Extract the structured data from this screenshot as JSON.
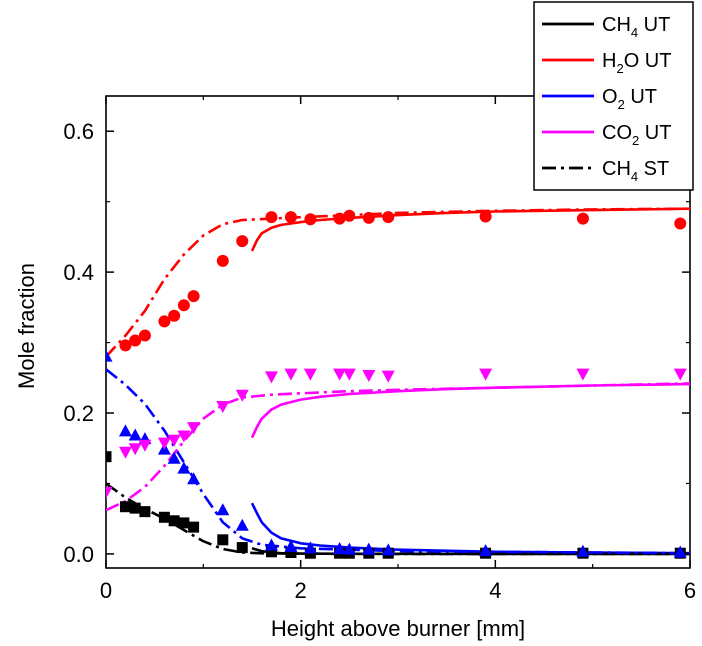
{
  "chart_data": {
    "type": "line",
    "xlabel": "Height above burner [mm]",
    "ylabel": "Mole fraction",
    "xlim": [
      0,
      6
    ],
    "ylim": [
      -0.02,
      0.65
    ],
    "xticks": [
      0,
      2,
      4,
      6
    ],
    "yticks": [
      0.0,
      0.2,
      0.4,
      0.6
    ],
    "xtick_labels": [
      "0",
      "2",
      "4",
      "6"
    ],
    "ytick_labels": [
      "0.0",
      "0.2",
      "0.4",
      "0.6"
    ],
    "grid": false,
    "legend_position": "top-right",
    "legend": [
      {
        "species": "CH",
        "sub": "4",
        "suffix": " UT",
        "color": "#000000",
        "style": "solid"
      },
      {
        "species": "H",
        "sub": "2",
        "suffix": "O UT",
        "color": "#ff0000",
        "style": "solid"
      },
      {
        "species": "O",
        "sub": "2",
        "suffix": " UT",
        "color": "#0000ff",
        "style": "solid"
      },
      {
        "species": "CO",
        "sub": "2",
        "suffix": " UT",
        "color": "#ff00ff",
        "style": "solid"
      },
      {
        "species": "CH",
        "sub": "4",
        "suffix": " ST",
        "color": "#000000",
        "style": "dashdot"
      }
    ],
    "lines": [
      {
        "name": "CH4 UT",
        "color": "#000000",
        "style": "solid",
        "x": [
          1.5,
          1.6,
          1.7,
          1.8,
          2.0,
          2.5,
          3,
          4,
          5,
          6
        ],
        "y": [
          0.008,
          0.004,
          0.002,
          0.001,
          0.0005,
          0.0002,
          0.0001,
          0.0,
          0.0,
          0.0
        ]
      },
      {
        "name": "H2O UT",
        "color": "#ff0000",
        "style": "solid",
        "x": [
          1.5,
          1.55,
          1.6,
          1.7,
          1.8,
          2.0,
          2.2,
          2.5,
          3.0,
          3.5,
          4.0,
          5.0,
          6.0
        ],
        "y": [
          0.43,
          0.445,
          0.455,
          0.463,
          0.467,
          0.471,
          0.474,
          0.477,
          0.481,
          0.484,
          0.486,
          0.488,
          0.49
        ]
      },
      {
        "name": "O2 UT",
        "color": "#0000ff",
        "style": "solid",
        "x": [
          1.5,
          1.55,
          1.6,
          1.7,
          1.8,
          2.0,
          2.2,
          2.5,
          3.0,
          4.0,
          5.0,
          6.0
        ],
        "y": [
          0.072,
          0.058,
          0.045,
          0.03,
          0.022,
          0.015,
          0.012,
          0.009,
          0.006,
          0.003,
          0.002,
          0.001
        ]
      },
      {
        "name": "CO2 UT",
        "color": "#ff00ff",
        "style": "solid",
        "x": [
          1.5,
          1.55,
          1.6,
          1.7,
          1.8,
          2.0,
          2.2,
          2.5,
          3.0,
          3.5,
          4.0,
          5.0,
          6.0
        ],
        "y": [
          0.165,
          0.18,
          0.192,
          0.205,
          0.212,
          0.219,
          0.223,
          0.227,
          0.231,
          0.234,
          0.236,
          0.239,
          0.241
        ]
      },
      {
        "name": "CH4 ST",
        "color": "#000000",
        "style": "dashdot",
        "x": [
          0.0,
          0.2,
          0.4,
          0.6,
          0.8,
          1.0,
          1.2,
          1.4,
          1.6,
          2.0,
          3.0,
          4.0,
          5.0,
          6.0
        ],
        "y": [
          0.1,
          0.08,
          0.064,
          0.05,
          0.034,
          0.018,
          0.007,
          0.002,
          0.0008,
          0.0003,
          0.0,
          0.0,
          0.0,
          0.0
        ]
      },
      {
        "name": "H2O ST",
        "color": "#ff0000",
        "style": "dashdot",
        "x": [
          0.0,
          0.2,
          0.4,
          0.6,
          0.8,
          1.0,
          1.2,
          1.4,
          1.7,
          2.0,
          2.5,
          3.0,
          4.0,
          5.0,
          6.0
        ],
        "y": [
          0.28,
          0.31,
          0.345,
          0.39,
          0.425,
          0.452,
          0.468,
          0.474,
          0.476,
          0.478,
          0.481,
          0.484,
          0.487,
          0.489,
          0.49
        ]
      },
      {
        "name": "O2 ST",
        "color": "#0000ff",
        "style": "dashdot",
        "x": [
          0.0,
          0.2,
          0.4,
          0.6,
          0.8,
          1.0,
          1.2,
          1.4,
          1.6,
          2.0,
          2.5,
          3.0,
          4.0,
          5.0,
          6.0
        ],
        "y": [
          0.262,
          0.24,
          0.213,
          0.175,
          0.13,
          0.085,
          0.045,
          0.022,
          0.013,
          0.008,
          0.006,
          0.004,
          0.003,
          0.002,
          0.001
        ]
      },
      {
        "name": "CO2 ST",
        "color": "#ff00ff",
        "style": "dashdot",
        "x": [
          0.0,
          0.2,
          0.4,
          0.6,
          0.8,
          1.0,
          1.2,
          1.4,
          1.7,
          2.0,
          2.5,
          3.0,
          4.0,
          5.0,
          6.0
        ],
        "y": [
          0.062,
          0.075,
          0.095,
          0.125,
          0.16,
          0.192,
          0.212,
          0.222,
          0.226,
          0.228,
          0.231,
          0.233,
          0.236,
          0.239,
          0.242
        ]
      }
    ],
    "markers": [
      {
        "name": "CH4 exp",
        "color": "#000000",
        "shape": "square",
        "x": [
          0.0,
          0.2,
          0.3,
          0.4,
          0.6,
          0.7,
          0.8,
          0.9,
          1.2,
          1.4,
          1.7,
          1.9,
          2.1,
          2.4,
          2.5,
          2.7,
          2.9,
          3.9,
          4.9,
          5.9
        ],
        "y": [
          0.138,
          0.067,
          0.065,
          0.06,
          0.052,
          0.047,
          0.044,
          0.038,
          0.02,
          0.009,
          0.003,
          0.002,
          0.001,
          0.001,
          0.001,
          0.001,
          0.001,
          0.001,
          0.001,
          0.001
        ]
      },
      {
        "name": "H2O exp",
        "color": "#ff0000",
        "shape": "circle",
        "x": [
          0.2,
          0.3,
          0.4,
          0.6,
          0.7,
          0.8,
          0.9,
          1.2,
          1.4,
          1.7,
          1.9,
          2.1,
          2.4,
          2.5,
          2.7,
          2.9,
          3.9,
          4.9,
          5.9
        ],
        "y": [
          0.296,
          0.303,
          0.31,
          0.33,
          0.338,
          0.353,
          0.366,
          0.416,
          0.444,
          0.478,
          0.478,
          0.475,
          0.476,
          0.48,
          0.477,
          0.478,
          0.479,
          0.476,
          0.469
        ]
      },
      {
        "name": "O2 exp",
        "color": "#0000ff",
        "shape": "triangle-up",
        "x": [
          0.0,
          0.2,
          0.3,
          0.4,
          0.6,
          0.7,
          0.8,
          0.9,
          1.2,
          1.4,
          1.7,
          1.9,
          2.1,
          2.4,
          2.5,
          2.7,
          2.9,
          3.9,
          4.9,
          5.9
        ],
        "y": [
          0.28,
          0.174,
          0.168,
          0.163,
          0.148,
          0.135,
          0.121,
          0.106,
          0.062,
          0.04,
          0.012,
          0.01,
          0.008,
          0.007,
          0.006,
          0.006,
          0.005,
          0.004,
          0.003,
          0.002
        ]
      },
      {
        "name": "CO2 exp",
        "color": "#ff00ff",
        "shape": "triangle-down",
        "x": [
          0.0,
          0.2,
          0.3,
          0.4,
          0.6,
          0.7,
          0.8,
          0.9,
          1.2,
          1.4,
          1.7,
          1.9,
          2.1,
          2.4,
          2.5,
          2.7,
          2.9,
          3.9,
          4.9,
          5.9
        ],
        "y": [
          0.088,
          0.145,
          0.15,
          0.155,
          0.158,
          0.162,
          0.168,
          0.18,
          0.21,
          0.226,
          0.252,
          0.256,
          0.256,
          0.256,
          0.256,
          0.254,
          0.253,
          0.256,
          0.256,
          0.256
        ]
      }
    ]
  }
}
